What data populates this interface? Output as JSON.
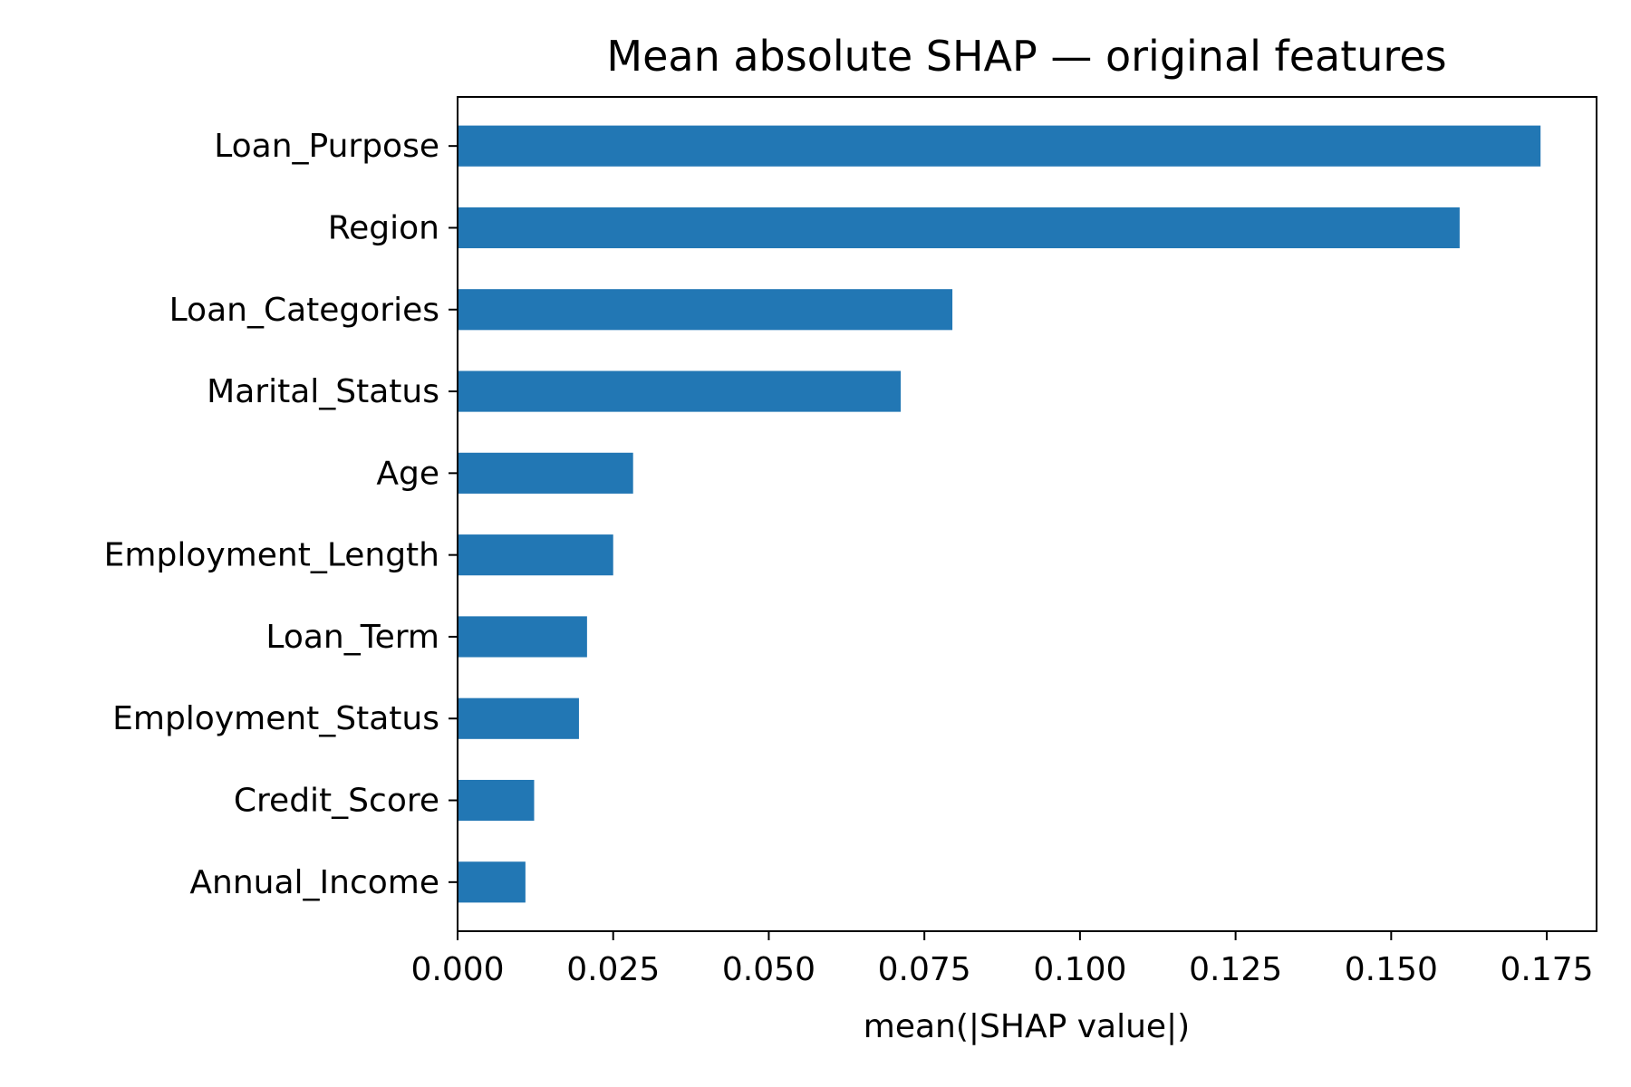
{
  "chart_data": {
    "type": "bar",
    "orientation": "horizontal",
    "title": "Mean absolute SHAP — original features",
    "xlabel": "mean(|SHAP value|)",
    "ylabel": "",
    "categories": [
      "Loan_Purpose",
      "Region",
      "Loan_Categories",
      "Marital_Status",
      "Age",
      "Employment_Length",
      "Loan_Term",
      "Employment_Status",
      "Credit_Score",
      "Annual_Income"
    ],
    "values": [
      0.174,
      0.161,
      0.0795,
      0.0712,
      0.0282,
      0.025,
      0.0208,
      0.0195,
      0.0123,
      0.0109
    ],
    "xlim": [
      0,
      0.183
    ],
    "xticks": [
      "0.000",
      "0.025",
      "0.050",
      "0.075",
      "0.100",
      "0.125",
      "0.150",
      "0.175"
    ],
    "grid": false,
    "legend": "none",
    "bar_color": "#2277b4"
  }
}
